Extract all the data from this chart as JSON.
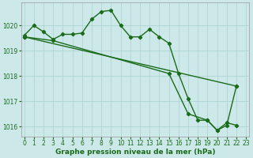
{
  "line1": {
    "x": [
      0,
      1,
      2,
      3,
      4,
      5,
      6,
      7,
      8,
      9,
      10,
      11,
      12,
      13,
      14,
      15,
      16,
      17,
      18,
      19,
      20,
      21,
      22
    ],
    "y": [
      1019.6,
      1020.0,
      1019.75,
      1019.45,
      1019.65,
      1019.65,
      1019.7,
      1020.25,
      1020.55,
      1020.6,
      1020.0,
      1019.55,
      1019.55,
      1019.85,
      1019.55,
      1019.3,
      1018.1,
      1017.1,
      1016.25,
      1016.25,
      1015.85,
      1016.15,
      1016.05
    ]
  },
  "line2": {
    "x": [
      0,
      22
    ],
    "y": [
      1019.55,
      1017.6
    ]
  },
  "line3": {
    "x": [
      0,
      3,
      15,
      17,
      19,
      20,
      21,
      22
    ],
    "y": [
      1019.55,
      1019.4,
      1018.1,
      1016.5,
      1016.25,
      1015.85,
      1016.05,
      1017.6
    ]
  },
  "ylim": [
    1015.6,
    1020.9
  ],
  "xlim": [
    -0.3,
    23.3
  ],
  "yticks": [
    1016,
    1017,
    1018,
    1019,
    1020
  ],
  "xticks": [
    0,
    1,
    2,
    3,
    4,
    5,
    6,
    7,
    8,
    9,
    10,
    11,
    12,
    13,
    14,
    15,
    16,
    17,
    18,
    19,
    20,
    21,
    22,
    23
  ],
  "xlabel": "Graphe pression niveau de la mer (hPa)",
  "bg_color": "#cce8e8",
  "grid_color": "#aad0d0",
  "line_color": "#1a6b1a",
  "tick_fontsize": 5.5,
  "xlabel_fontsize": 6.5
}
